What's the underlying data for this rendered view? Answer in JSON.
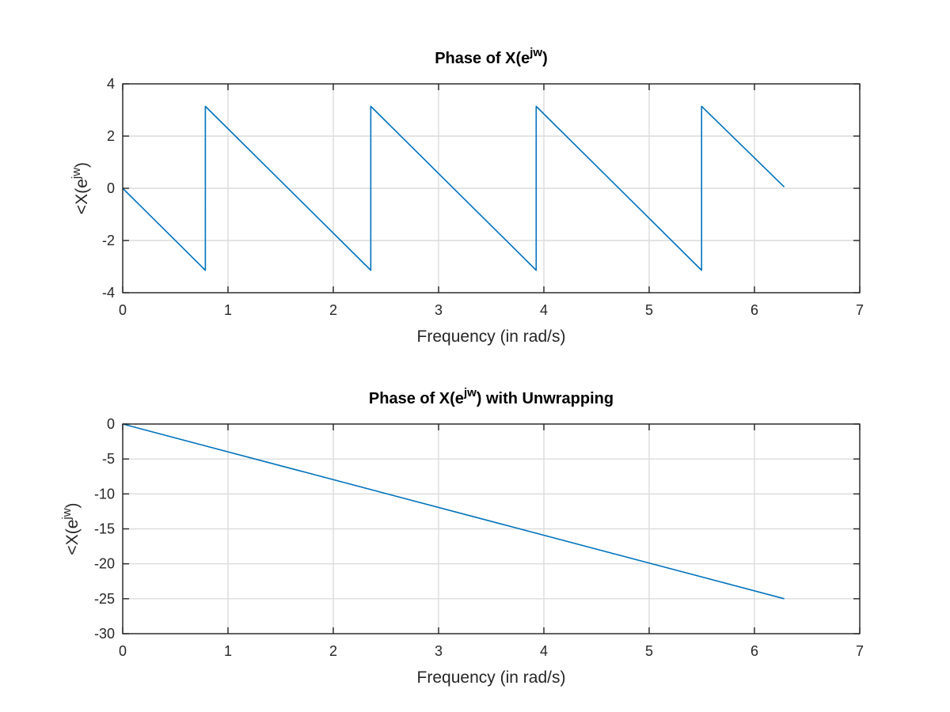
{
  "chart_data": [
    {
      "type": "line",
      "title": {
        "pre": "Phase of X(e",
        "sup": "jw",
        "post": ")"
      },
      "xlabel": "Frequency (in rad/s)",
      "ylabel": {
        "pre": "<X(e",
        "sup": "jw",
        "post": ")"
      },
      "xlim": [
        0,
        7
      ],
      "ylim": [
        -4,
        4
      ],
      "xticks": [
        "0",
        "1",
        "2",
        "3",
        "4",
        "5",
        "6",
        "7"
      ],
      "yticks": [
        "4",
        "2",
        "0",
        "-2",
        "-4"
      ],
      "grid": true,
      "series": [
        {
          "color": "#0072bd",
          "x": [
            0,
            0.785,
            0.785,
            2.356,
            2.356,
            3.927,
            3.927,
            5.498,
            5.498,
            6.283
          ],
          "y": [
            0,
            -3.14,
            3.14,
            -3.14,
            3.14,
            -3.14,
            3.14,
            -3.14,
            3.14,
            0.05
          ]
        }
      ]
    },
    {
      "type": "line",
      "title": {
        "pre": "Phase of X(e",
        "sup": "jw",
        "post": ") with Unwrapping"
      },
      "xlabel": "Frequency (in rad/s)",
      "ylabel": {
        "pre": "<X(e",
        "sup": "jw",
        "post": ")"
      },
      "xlim": [
        0,
        7
      ],
      "ylim": [
        -30,
        0
      ],
      "xticks": [
        "0",
        "1",
        "2",
        "3",
        "4",
        "5",
        "6",
        "7"
      ],
      "yticks": [
        "0",
        "-5",
        "-10",
        "-15",
        "-20",
        "-25",
        "-30"
      ],
      "grid": true,
      "series": [
        {
          "color": "#0072bd",
          "x": [
            0,
            6.283
          ],
          "y": [
            0,
            -25.0
          ]
        }
      ]
    }
  ]
}
